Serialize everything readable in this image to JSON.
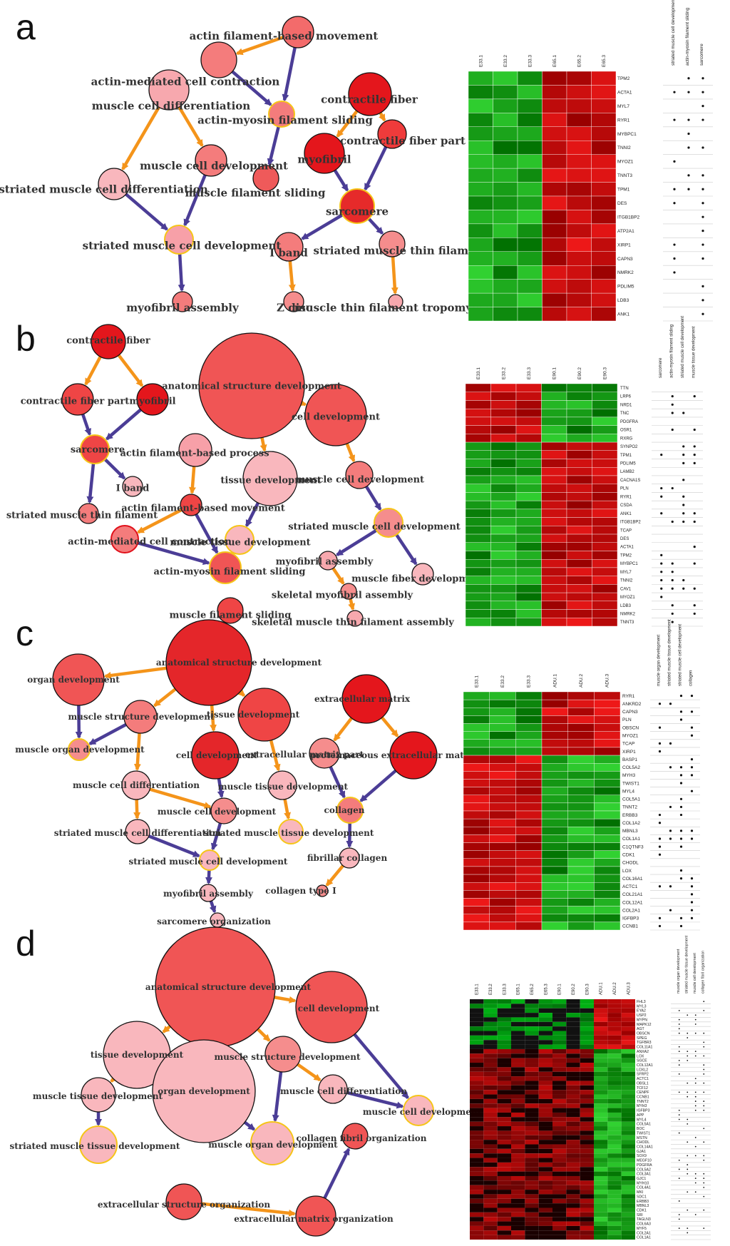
{
  "panels": [
    {
      "label": "a",
      "nodes": [
        {
          "id": "afbm",
          "label": "actin filament-based movement",
          "color": "#f36b6b",
          "hl": false
        },
        {
          "id": "amcc",
          "label": "actin-mediated cell contraction",
          "color": "#f47c7c",
          "hl": false
        },
        {
          "id": "mcd",
          "label": "muscle cell differentiation",
          "color": "#f7a8ae",
          "hl": false
        },
        {
          "id": "amfs",
          "label": "actin-myosin filament sliding",
          "color": "#f47c7c",
          "hl": true
        },
        {
          "id": "mcdev",
          "label": "muscle cell development",
          "color": "#f47c7c",
          "hl": false
        },
        {
          "id": "smcd",
          "label": "striated muscle cell differentiation",
          "color": "#f9b7bd",
          "hl": false
        },
        {
          "id": "mfs",
          "label": "muscle filament sliding",
          "color": "#ef5a5a",
          "hl": false
        },
        {
          "id": "smcdev",
          "label": "striated muscle cell development",
          "color": "#f7a0a8",
          "hl": true
        },
        {
          "id": "mfa",
          "label": "myofibril assembly",
          "color": "#f47c7c",
          "hl": false
        },
        {
          "id": "cf",
          "label": "contractile fiber",
          "color": "#e4161c",
          "hl": false
        },
        {
          "id": "cfp",
          "label": "contractile fiber part",
          "color": "#ef3b3b",
          "hl": false
        },
        {
          "id": "mf",
          "label": "myofibril",
          "color": "#e4161c",
          "hl": false
        },
        {
          "id": "sarc",
          "label": "sarcomere",
          "color": "#e62a2a",
          "hl": true
        },
        {
          "id": "iband",
          "label": "I band",
          "color": "#f47c7c",
          "hl": false
        },
        {
          "id": "smtf",
          "label": "striated muscle thin filament",
          "color": "#f58d8d",
          "hl": false
        },
        {
          "id": "zdisc",
          "label": "Z disc",
          "color": "#f58d8d",
          "hl": false
        },
        {
          "id": "mtft",
          "label": "muscle thin filament tropomyosin",
          "color": "#f7a8ae",
          "hl": false
        }
      ],
      "heatmap": {
        "samples": [
          "E33.1",
          "E33.2",
          "E33.3",
          "E65.1",
          "E65.2",
          "E65.3"
        ],
        "categories": [
          "striated muscle cell development",
          "actin-myosin filament sliding",
          "sarcomere"
        ],
        "genes": [
          "TPM2",
          "ACTA1",
          "MYL7",
          "RYR1",
          "MYBPC1",
          "TNNI2",
          "MYOZ1",
          "TNNT3",
          "TPM1",
          "DES",
          "ITGB1BP2",
          "ATP2A1",
          "XIRP1",
          "CAPN3",
          "NMRK2",
          "PDLIM5",
          "LDB3",
          "ANK1"
        ]
      }
    },
    {
      "label": "b",
      "nodes": [
        {
          "id": "cf",
          "label": "contractile fiber",
          "color": "#e4161c",
          "hl": false
        },
        {
          "id": "cfp",
          "label": "contractile fiber part",
          "color": "#ef4545",
          "hl": false
        },
        {
          "id": "mf",
          "label": "myofibril",
          "color": "#e4161c",
          "hl": false
        },
        {
          "id": "sarc",
          "label": "sarcomere",
          "color": "#ef4545",
          "hl": true
        },
        {
          "id": "iband",
          "label": "I band",
          "color": "#f9b7bd",
          "hl": false
        },
        {
          "id": "smtf",
          "label": "striated muscle thin filament",
          "color": "#f47c7c",
          "hl": false
        },
        {
          "id": "asd",
          "label": "anatomical structure development",
          "color": "#f05555",
          "hl": false
        },
        {
          "id": "cd",
          "label": "cell development",
          "color": "#f05555",
          "hl": false
        },
        {
          "id": "afbp",
          "label": "actin filament-based process",
          "color": "#f7a0a8",
          "hl": false
        },
        {
          "id": "td",
          "label": "tissue development",
          "color": "#f9b7bd",
          "hl": false
        },
        {
          "id": "afbm",
          "label": "actin filament-based movement",
          "color": "#ef4545",
          "hl": false
        },
        {
          "id": "amcc",
          "label": "actin-mediated cell contraction",
          "color": "#f47c7c",
          "hl": false,
          "red": true
        },
        {
          "id": "mtd",
          "label": "muscle tissue development",
          "color": "#f9b7bd",
          "hl": true
        },
        {
          "id": "amfs",
          "label": "actin-myosin filament sliding",
          "color": "#f05555",
          "hl": true
        },
        {
          "id": "mfs",
          "label": "muscle filament sliding",
          "color": "#ef4545",
          "hl": false
        },
        {
          "id": "mcdev",
          "label": "muscle cell development",
          "color": "#f47c7c",
          "hl": false
        },
        {
          "id": "smcdev",
          "label": "striated muscle cell development",
          "color": "#f58d8d",
          "hl": true
        },
        {
          "id": "mfa",
          "label": "myofibril assembly",
          "color": "#f7a8ae",
          "hl": false
        },
        {
          "id": "mfd",
          "label": "muscle fiber development",
          "color": "#f9b7bd",
          "hl": false
        },
        {
          "id": "skmfa",
          "label": "skeletal myofibril assembly",
          "color": "#f58d8d",
          "hl": false
        },
        {
          "id": "skmtfa",
          "label": "skeletal muscle thin filament assembly",
          "color": "#f7a8ae",
          "hl": false
        }
      ],
      "heatmap": {
        "samples": [
          "E33.1",
          "E33.2",
          "E33.3",
          "E90.1",
          "E90.2",
          "E90.3"
        ],
        "categories": [
          "sarcomere",
          "actin-myosin filament sliding",
          "striated muscle cell development",
          "muscle tissue development"
        ],
        "genes": [
          "TTN",
          "LRP6",
          "NRD1",
          "TNC",
          "PDGFRA",
          "OSR1",
          "RXRG",
          "SYNPO2",
          "TPM1",
          "PDLIM5",
          "LAMB2",
          "CACNA1S",
          "PLN",
          "RYR1",
          "CSDA",
          "ANK1",
          "ITGB1BP2",
          "TCAP",
          "DES",
          "ACTA1",
          "TPM2",
          "MYBPC1",
          "MYL7",
          "TNNI2",
          "CAV1",
          "MYOZ1",
          "LDB3",
          "NMRK2",
          "TNNT3"
        ]
      }
    },
    {
      "label": "c",
      "nodes": [
        {
          "id": "od",
          "label": "organ development",
          "color": "#f05555",
          "hl": false
        },
        {
          "id": "asd",
          "label": "anatomical structure development",
          "color": "#e4262a",
          "hl": false
        },
        {
          "id": "msd",
          "label": "muscle structure development",
          "color": "#f47c7c",
          "hl": false
        },
        {
          "id": "td",
          "label": "tissue development",
          "color": "#ef4545",
          "hl": false
        },
        {
          "id": "mod",
          "label": "muscle organ development",
          "color": "#f58d8d",
          "hl": true
        },
        {
          "id": "cd",
          "label": "cell development",
          "color": "#e4262a",
          "hl": false
        },
        {
          "id": "em",
          "label": "extracellular matrix",
          "color": "#e4161c",
          "hl": false
        },
        {
          "id": "emp",
          "label": "extracellular matrix part",
          "color": "#f58d8d",
          "hl": false
        },
        {
          "id": "pem",
          "label": "proteinaceous extracellular matrix",
          "color": "#e4161c",
          "hl": false
        },
        {
          "id": "mcdiff",
          "label": "muscle cell differentiation",
          "color": "#f9b7bd",
          "hl": false
        },
        {
          "id": "mcdev",
          "label": "muscle cell development",
          "color": "#f58d8d",
          "hl": false
        },
        {
          "id": "mtd",
          "label": "muscle tissue development",
          "color": "#f9b7bd",
          "hl": false
        },
        {
          "id": "coll",
          "label": "collagen",
          "color": "#f47c7c",
          "hl": true
        },
        {
          "id": "smcdiff",
          "label": "striated muscle cell differentiation",
          "color": "#f9b7bd",
          "hl": false
        },
        {
          "id": "smtd",
          "label": "striated muscle tissue development",
          "color": "#f9b7bd",
          "hl": true
        },
        {
          "id": "smcdev",
          "label": "striated muscle cell development",
          "color": "#f9b7bd",
          "hl": true
        },
        {
          "id": "fc",
          "label": "fibrillar collagen",
          "color": "#f9b7bd",
          "hl": false
        },
        {
          "id": "mfa",
          "label": "myofibril assembly",
          "color": "#f9b7bd",
          "hl": false
        },
        {
          "id": "ct1",
          "label": "collagen type I",
          "color": "#f58d8d",
          "hl": false
        },
        {
          "id": "so",
          "label": "sarcomere organization",
          "color": "#f9b7bd",
          "hl": false
        }
      ],
      "heatmap": {
        "samples": [
          "E33.1",
          "E33.2",
          "E33.3",
          "ADU.1",
          "ADU.2",
          "ADU.3"
        ],
        "categories": [
          "muscle organ development",
          "striated muscle tissue development",
          "striated muscle cell development",
          "collagen"
        ],
        "genes": [
          "RYR1",
          "ANKRD2",
          "CAPN3",
          "PLN",
          "OBSCN",
          "MYOZ1",
          "TCAP",
          "XIRP1",
          "BASP1",
          "COL5A2",
          "MYH3",
          "TWIST1",
          "MYL4",
          "COL5A1",
          "TNNT2",
          "ERBB3",
          "COL1A2",
          "MBNL3",
          "COL1A1",
          "C1QTNF3",
          "CDK1",
          "CHODL",
          "LOX",
          "COL16A1",
          "ACTC1",
          "COL21A1",
          "COL12A1",
          "COL2A1",
          "IGFBP3",
          "CCNB1"
        ]
      }
    },
    {
      "label": "d",
      "nodes": [
        {
          "id": "asd",
          "label": "anatomical structure development",
          "color": "#f05555",
          "hl": false
        },
        {
          "id": "cd",
          "label": "cell development",
          "color": "#f05555",
          "hl": false
        },
        {
          "id": "td",
          "label": "tissue development",
          "color": "#f9b7bd",
          "hl": false
        },
        {
          "id": "msd",
          "label": "muscle structure development",
          "color": "#f58d8d",
          "hl": false
        },
        {
          "id": "mcdiff",
          "label": "muscle cell differentiation",
          "color": "#f9b7bd",
          "hl": false
        },
        {
          "id": "od",
          "label": "organ development",
          "color": "#f9b7bd",
          "hl": false
        },
        {
          "id": "mtd",
          "label": "muscle tissue development",
          "color": "#f9b7bd",
          "hl": false
        },
        {
          "id": "mcdev",
          "label": "muscle cell development",
          "color": "#f9b7bd",
          "hl": true
        },
        {
          "id": "smtd",
          "label": "striated muscle tissue development",
          "color": "#f9b7bd",
          "hl": true
        },
        {
          "id": "mod",
          "label": "muscle organ development",
          "color": "#f9b7bd",
          "hl": true
        },
        {
          "id": "cfo",
          "label": "collagen fibril organization",
          "color": "#f05555",
          "hl": false
        },
        {
          "id": "eso",
          "label": "extracellular structure organization",
          "color": "#f05555",
          "hl": false
        },
        {
          "id": "emo",
          "label": "extracellular matrix organization",
          "color": "#f05555",
          "hl": false
        }
      ],
      "heatmap": {
        "samples": [
          "E33.1",
          "E33.2",
          "E33.3",
          "E65.1",
          "E65.2",
          "E65.3",
          "E90.1",
          "E90.2",
          "E90.3",
          "ADU.1",
          "ADU.2",
          "ADU.3"
        ],
        "categories": [
          "muscle organ development",
          "striated muscle tissue development",
          "muscle cell development",
          "collagen fibril organization"
        ],
        "genes": [
          "FHL3",
          "MYL3",
          "EYA2",
          "USP2",
          "MYPN",
          "MAPK12",
          "AGT",
          "OBSCN",
          "SPEG",
          "TGFBR3",
          "COL11A1",
          "ANXA2",
          "LOX",
          "SGCE",
          "COL12A1",
          "LOXL2",
          "SFRP2",
          "ACTC1",
          "OBSL1",
          "TCF12",
          "CENPF",
          "CCNB1",
          "TNNT2",
          "MYH3",
          "IGFBP3",
          "APP",
          "MYL4",
          "COL5A1",
          "BOC",
          "TWIST1",
          "MSTN",
          "CHODL",
          "COL14A1",
          "GJA1",
          "SOX9",
          "MEGF10",
          "PDGFRA",
          "COL5A2",
          "COL3A1",
          "GJC1",
          "MYH10",
          "COL4A1",
          "MKI",
          "SDC1",
          "ERBB3",
          "MBNL3",
          "CDK1",
          "SRI",
          "TAGLN3",
          "COL6A3",
          "MYF5",
          "COL2A1",
          "COL1A1"
        ]
      }
    }
  ]
}
